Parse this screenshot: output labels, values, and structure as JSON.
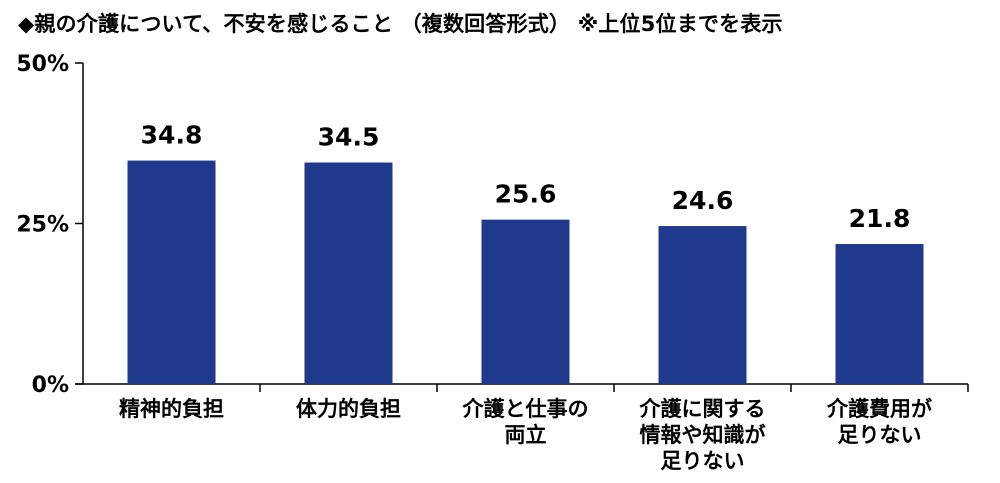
{
  "title": "◆親の介護について、不安を感じること （複数回答形式） ※上位5位までを表示",
  "chart_data": {
    "type": "bar",
    "categories": [
      "精神的負担",
      "体力的負担",
      "介護と仕事の\n両立",
      "介護に関する\n情報や知識が\n足りない",
      "介護費用が\n足りない"
    ],
    "values": [
      34.8,
      34.5,
      25.6,
      24.6,
      21.8
    ],
    "value_labels": [
      "34.8",
      "34.5",
      "25.6",
      "24.6",
      "21.8"
    ],
    "yticks": [
      0,
      25,
      50
    ],
    "ytick_labels": [
      "0%",
      "25%",
      "50%"
    ],
    "ylim": [
      0,
      50
    ],
    "bar_color": "#1f3a8c",
    "grid": false
  }
}
